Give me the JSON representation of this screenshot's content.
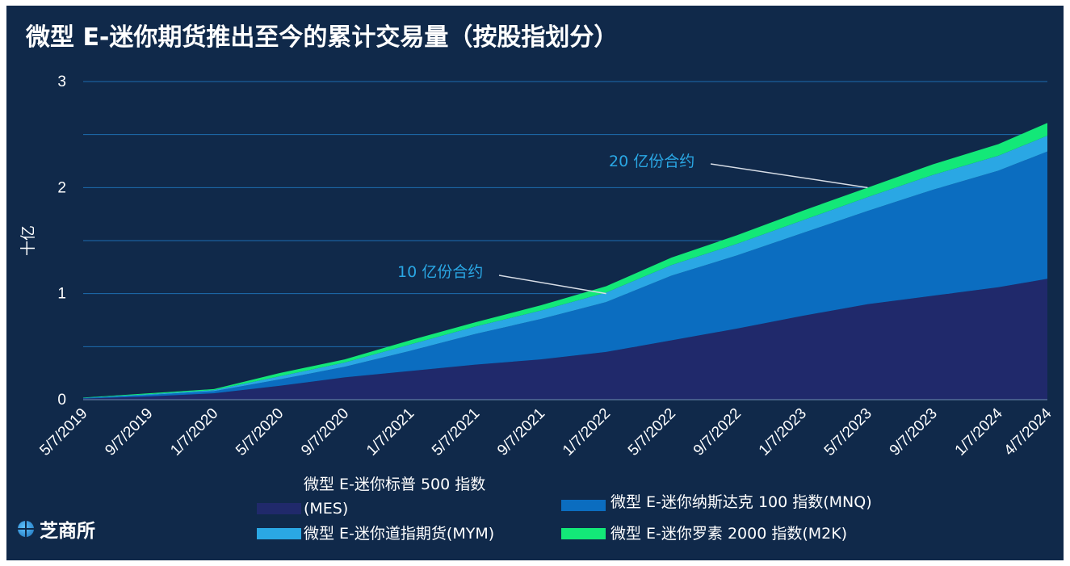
{
  "title": "微型 E-迷你期货推出至今的累计交易量（按股指划分）",
  "logo": {
    "icon": "globe-icon",
    "text": "芝商所"
  },
  "colors": {
    "background": "#10294a",
    "MES": "#20296b",
    "MNQ": "#0b6dc0",
    "MYM": "#2aa7e4",
    "M2K": "#13e878",
    "grid": "#1d6cb0",
    "annotation": "#2aa7e4"
  },
  "annotations": [
    {
      "text": "10 亿份合约",
      "target_x": 32,
      "target_y": 1.0
    },
    {
      "text": "20 亿份合约",
      "target_x": 48,
      "target_y": 2.0
    }
  ],
  "legend": [
    {
      "key": "MES",
      "label_line1": "微型 E-迷你标普 500 指数",
      "label_line2": "(MES)"
    },
    {
      "key": "MYM",
      "label": "微型 E-迷你道指期货(MYM)"
    },
    {
      "key": "MNQ",
      "label": "微型 E-迷你纳斯达克 100 指数(MNQ)"
    },
    {
      "key": "M2K",
      "label": "微型 E-迷你罗素 2000 指数(M2K)"
    }
  ],
  "chart_data": {
    "type": "area",
    "stacked": true,
    "title": "微型 E-迷你期货推出至今的累计交易量（按股指划分）",
    "ylabel": "十亿",
    "xlabel": "",
    "ylim": [
      0,
      3
    ],
    "yticks": [
      0,
      1,
      2,
      3
    ],
    "grid": true,
    "legend_position": "bottom",
    "xtick_labels": [
      "5/7/2019",
      "9/7/2019",
      "1/7/2020",
      "5/7/2020",
      "9/7/2020",
      "1/7/2021",
      "5/7/2021",
      "9/7/2021",
      "1/7/2022",
      "5/7/2022",
      "9/7/2022",
      "1/7/2023",
      "5/7/2023",
      "9/7/2023",
      "1/7/2024",
      "4/7/2024"
    ],
    "x_months_since_start": [
      0,
      4,
      8,
      12,
      16,
      20,
      24,
      28,
      32,
      36,
      40,
      44,
      48,
      52,
      56,
      59
    ],
    "series": [
      {
        "name": "微型 E-迷你标普 500 指数(MES)",
        "key": "MES",
        "values": [
          0.01,
          0.03,
          0.06,
          0.13,
          0.21,
          0.27,
          0.33,
          0.38,
          0.45,
          0.56,
          0.67,
          0.79,
          0.9,
          0.98,
          1.06,
          1.14
        ]
      },
      {
        "name": "微型 E-迷你纳斯达克 100 指数(MNQ)",
        "key": "MNQ",
        "values": [
          0.005,
          0.015,
          0.02,
          0.06,
          0.1,
          0.19,
          0.29,
          0.38,
          0.47,
          0.61,
          0.69,
          0.78,
          0.88,
          1.0,
          1.1,
          1.2
        ]
      },
      {
        "name": "微型 E-迷你道指期货(MYM)",
        "key": "MYM",
        "values": [
          0.002,
          0.006,
          0.01,
          0.03,
          0.04,
          0.06,
          0.07,
          0.08,
          0.09,
          0.1,
          0.11,
          0.12,
          0.13,
          0.14,
          0.14,
          0.15
        ]
      },
      {
        "name": "微型 E-迷你罗素 2000 指数(M2K)",
        "key": "M2K",
        "values": [
          0.003,
          0.009,
          0.01,
          0.03,
          0.03,
          0.04,
          0.04,
          0.05,
          0.06,
          0.07,
          0.08,
          0.09,
          0.09,
          0.1,
          0.11,
          0.12
        ]
      }
    ]
  }
}
